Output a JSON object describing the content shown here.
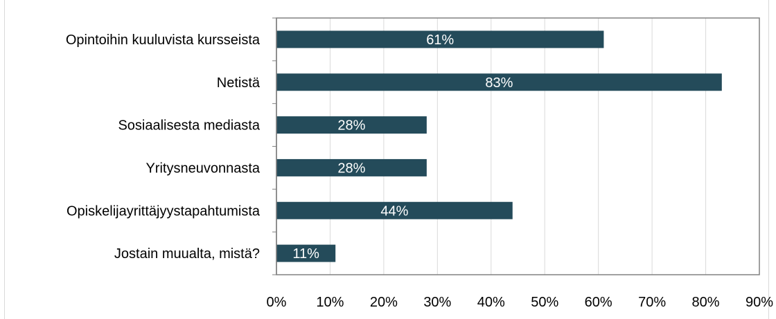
{
  "chart_data": {
    "type": "bar",
    "orientation": "horizontal",
    "categories": [
      "Opintoihin kuuluvista kursseista",
      "Netistä",
      "Sosiaalisesta mediasta",
      "Yritysneuvonnasta",
      "Opiskelijayrittäjyystapahtumista",
      "Jostain muualta, mistä?"
    ],
    "values": [
      61,
      83,
      28,
      28,
      44,
      11
    ],
    "data_labels": [
      "61%",
      "83%",
      "28%",
      "28%",
      "44%",
      "11%"
    ],
    "x_ticks": [
      "0%",
      "10%",
      "20%",
      "30%",
      "40%",
      "50%",
      "60%",
      "70%",
      "80%",
      "90%"
    ],
    "xlim": [
      0,
      90
    ],
    "grid": true,
    "legend": "none",
    "bar_color": "#244b5a",
    "grid_color": "#d9d9d9",
    "title": "",
    "xlabel": "",
    "ylabel": ""
  }
}
